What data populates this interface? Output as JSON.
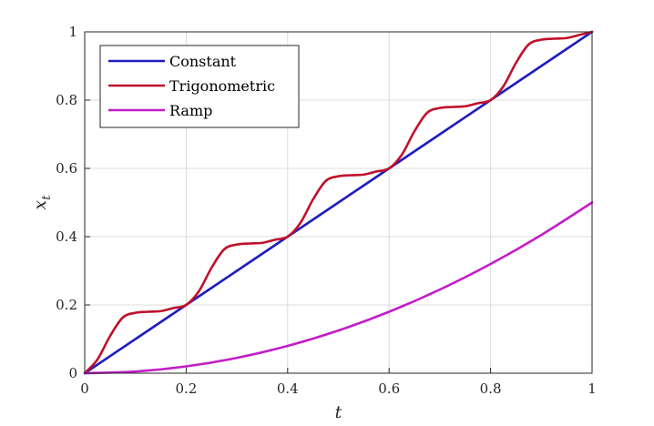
{
  "chart_data": {
    "type": "line",
    "title": "",
    "xlabel": "t",
    "ylabel": "x",
    "ylabel_subscript": "t",
    "xlim": [
      0,
      1
    ],
    "ylim": [
      0,
      1
    ],
    "xticks": [
      "0",
      "0.2",
      "0.4",
      "0.6",
      "0.8",
      "1"
    ],
    "yticks": [
      "0",
      "0.2",
      "0.4",
      "0.6",
      "0.8",
      "1"
    ],
    "grid": true,
    "legend_position": "top-left",
    "series": [
      {
        "name": "Constant",
        "color": "#1f1cbf",
        "x": [
          0,
          0.1,
          0.2,
          0.3,
          0.4,
          0.5,
          0.6,
          0.7,
          0.8,
          0.9,
          1.0
        ],
        "y": [
          0,
          0.1,
          0.2,
          0.3,
          0.4,
          0.5,
          0.6,
          0.7,
          0.8,
          0.9,
          1.0
        ]
      },
      {
        "name": "Trigonometric",
        "color": "#c0102b",
        "x": [
          0,
          0.025,
          0.05,
          0.075,
          0.1,
          0.125,
          0.15,
          0.175,
          0.2,
          0.225,
          0.25,
          0.275,
          0.3,
          0.325,
          0.35,
          0.375,
          0.4,
          0.425,
          0.45,
          0.475,
          0.5,
          0.525,
          0.55,
          0.575,
          0.6,
          0.625,
          0.65,
          0.675,
          0.7,
          0.725,
          0.75,
          0.775,
          0.8,
          0.825,
          0.85,
          0.875,
          0.9,
          0.925,
          0.95,
          0.975,
          1.0
        ],
        "y": [
          0,
          0.04,
          0.109,
          0.163,
          0.177,
          0.18,
          0.182,
          0.191,
          0.2,
          0.24,
          0.309,
          0.363,
          0.377,
          0.38,
          0.382,
          0.391,
          0.4,
          0.44,
          0.509,
          0.563,
          0.577,
          0.58,
          0.582,
          0.591,
          0.6,
          0.64,
          0.709,
          0.763,
          0.777,
          0.78,
          0.782,
          0.791,
          0.8,
          0.84,
          0.909,
          0.963,
          0.977,
          0.98,
          0.982,
          0.991,
          1.0
        ]
      },
      {
        "name": "Ramp",
        "color": "#c21dc9",
        "x": [
          0,
          0.1,
          0.2,
          0.3,
          0.4,
          0.5,
          0.6,
          0.7,
          0.8,
          0.9,
          1.0
        ],
        "y": [
          0,
          0.005,
          0.02,
          0.045,
          0.08,
          0.125,
          0.18,
          0.245,
          0.32,
          0.405,
          0.5
        ]
      }
    ]
  }
}
